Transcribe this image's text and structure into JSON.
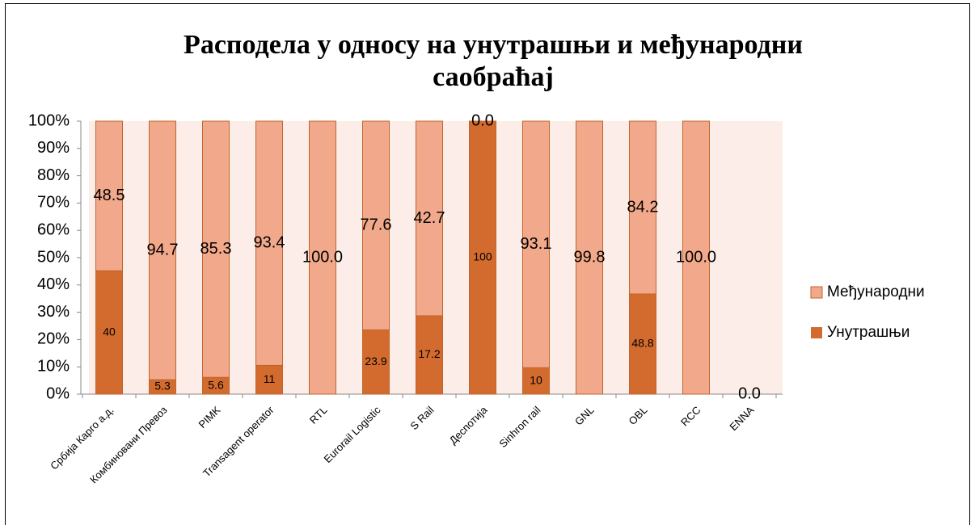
{
  "chart_data": {
    "type": "stacked_bar_100",
    "title": "Расподела у односу на унутрашњи и међународни саобраћај",
    "categories": [
      "Србија Карго а.д.",
      "Комбиновани Превоз",
      "PIMK",
      "Transagent operator",
      "RTL",
      "Eurorail Logistic",
      "S Rail",
      "Деспотија",
      "Sinhron rail",
      "GNL",
      "OBL",
      "RCC",
      "ENNA"
    ],
    "series": [
      {
        "name": "Унутрашњи",
        "color": "#d46b2e",
        "values": [
          40,
          5.3,
          5.6,
          11,
          null,
          23.9,
          17.2,
          100,
          10,
          null,
          48.8,
          null,
          null
        ]
      },
      {
        "name": "Међународни",
        "color": "#f2a98b",
        "values": [
          48.5,
          94.7,
          85.3,
          93.4,
          100,
          77.6,
          42.7,
          0,
          93.1,
          99.8,
          84.2,
          100,
          0
        ],
        "value_labels": [
          "48.5",
          "94.7",
          "85.3",
          "93.4",
          "100.0",
          "77.6",
          "42.7",
          "0.0",
          "93.1",
          "99.8",
          "84.2",
          "100.0",
          "0.0"
        ]
      }
    ],
    "ylim": [
      0,
      100
    ],
    "yticks": [
      {
        "value": 0,
        "label": "0%"
      },
      {
        "value": 10,
        "label": "10%"
      },
      {
        "value": 20,
        "label": "20%"
      },
      {
        "value": 30,
        "label": "30%"
      },
      {
        "value": 40,
        "label": "40%"
      },
      {
        "value": 50,
        "label": "50%"
      },
      {
        "value": 60,
        "label": "60%"
      },
      {
        "value": 70,
        "label": "70%"
      },
      {
        "value": 80,
        "label": "80%"
      },
      {
        "value": 90,
        "label": "90%"
      },
      {
        "value": 100,
        "label": "100%"
      }
    ],
    "legend": "right"
  }
}
